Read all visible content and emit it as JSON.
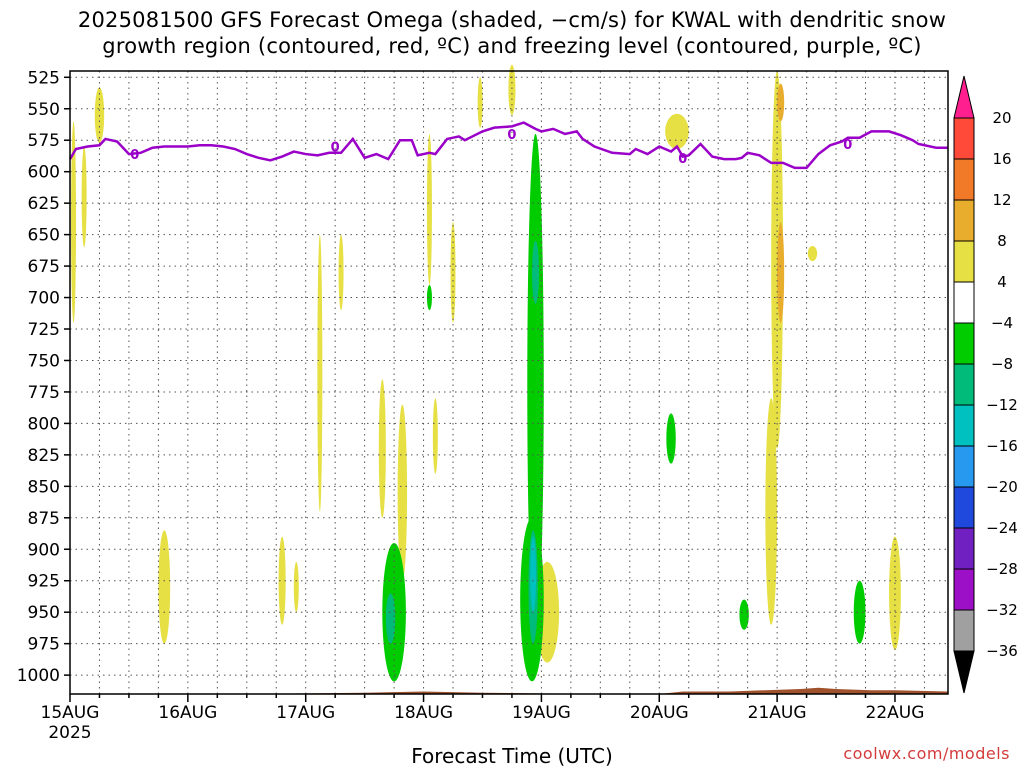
{
  "title_line1": "2025081500 GFS Forecast Omega (shaded, −cm/s) for KWAL with dendritic snow",
  "title_line2": "growth region (contoured, red, ºC) and freezing level (contoured, purple, ºC)",
  "xlabel": "Forecast Time (UTC)",
  "credit": "coolwx.com/models",
  "colors": {
    "freezing_line": "#9a00c8",
    "terrain": "#a0522d"
  },
  "chart_data": {
    "type": "heatmap",
    "y_ticks": [
      525,
      550,
      575,
      600,
      625,
      650,
      675,
      700,
      725,
      750,
      775,
      800,
      825,
      850,
      875,
      900,
      925,
      950,
      975,
      1000
    ],
    "ylim": [
      520,
      1015
    ],
    "x_ticks": [
      {
        "day": 0,
        "label": "15AUG",
        "sub": "2025"
      },
      {
        "day": 1,
        "label": "16AUG",
        "sub": ""
      },
      {
        "day": 2,
        "label": "17AUG",
        "sub": ""
      },
      {
        "day": 3,
        "label": "18AUG",
        "sub": ""
      },
      {
        "day": 4,
        "label": "19AUG",
        "sub": ""
      },
      {
        "day": 5,
        "label": "20AUG",
        "sub": ""
      },
      {
        "day": 6,
        "label": "21AUG",
        "sub": ""
      },
      {
        "day": 7,
        "label": "22AUG",
        "sub": ""
      }
    ],
    "xlim": [
      0,
      7.45
    ],
    "colorbar": {
      "labels": [
        "20",
        "16",
        "12",
        "8",
        "4",
        "−4",
        "−8",
        "−12",
        "−16",
        "−20",
        "−24",
        "−28",
        "−32",
        "−36"
      ],
      "bands": [
        "#ff1f8f",
        "#ff4a3a",
        "#f07a28",
        "#e9ad2e",
        "#e6e044",
        "#ffffff",
        "#00cc00",
        "#00bb7a",
        "#00c0c0",
        "#2799ee",
        "#1f48dd",
        "#7020c0",
        "#9c10c8",
        "#a0a0a0",
        "#000000"
      ]
    },
    "freezing_level": {
      "label": "0",
      "points": [
        [
          0,
          590
        ],
        [
          0.05,
          582
        ],
        [
          0.15,
          580
        ],
        [
          0.25,
          579
        ],
        [
          0.3,
          574
        ],
        [
          0.4,
          576
        ],
        [
          0.5,
          586
        ],
        [
          0.6,
          585
        ],
        [
          0.7,
          581
        ],
        [
          0.8,
          580
        ],
        [
          0.9,
          580
        ],
        [
          1.0,
          580
        ],
        [
          1.1,
          579
        ],
        [
          1.2,
          579
        ],
        [
          1.3,
          580
        ],
        [
          1.4,
          582
        ],
        [
          1.5,
          586
        ],
        [
          1.6,
          589
        ],
        [
          1.7,
          591
        ],
        [
          1.8,
          588
        ],
        [
          1.9,
          584
        ],
        [
          2.0,
          586
        ],
        [
          2.1,
          587
        ],
        [
          2.2,
          585
        ],
        [
          2.3,
          585
        ],
        [
          2.4,
          574
        ],
        [
          2.5,
          589
        ],
        [
          2.6,
          586
        ],
        [
          2.7,
          590
        ],
        [
          2.8,
          575
        ],
        [
          2.9,
          575
        ],
        [
          2.95,
          587
        ],
        [
          3.05,
          585
        ],
        [
          3.1,
          586
        ],
        [
          3.2,
          574
        ],
        [
          3.3,
          572
        ],
        [
          3.35,
          575
        ],
        [
          3.5,
          568
        ],
        [
          3.6,
          565
        ],
        [
          3.75,
          564
        ],
        [
          3.85,
          561
        ],
        [
          3.95,
          566
        ],
        [
          4.0,
          568
        ],
        [
          4.1,
          566
        ],
        [
          4.2,
          570
        ],
        [
          4.3,
          568
        ],
        [
          4.35,
          574
        ],
        [
          4.45,
          580
        ],
        [
          4.6,
          585
        ],
        [
          4.75,
          586
        ],
        [
          4.8,
          582
        ],
        [
          4.9,
          586
        ],
        [
          5.0,
          580
        ],
        [
          5.1,
          584
        ],
        [
          5.15,
          580
        ],
        [
          5.2,
          588
        ],
        [
          5.25,
          587
        ],
        [
          5.35,
          578
        ],
        [
          5.45,
          588
        ],
        [
          5.55,
          590
        ],
        [
          5.65,
          590
        ],
        [
          5.7,
          589
        ],
        [
          5.75,
          585
        ],
        [
          5.85,
          587
        ],
        [
          5.95,
          593
        ],
        [
          6.05,
          593
        ],
        [
          6.15,
          597
        ],
        [
          6.25,
          597
        ],
        [
          6.35,
          586
        ],
        [
          6.45,
          579
        ],
        [
          6.55,
          576
        ],
        [
          6.6,
          573
        ],
        [
          6.7,
          573
        ],
        [
          6.8,
          568
        ],
        [
          6.9,
          568
        ],
        [
          6.95,
          568
        ],
        [
          7.05,
          571
        ],
        [
          7.15,
          575
        ],
        [
          7.2,
          578
        ],
        [
          7.35,
          581
        ],
        [
          7.45,
          581
        ]
      ],
      "label_positions": [
        [
          0.55,
          586
        ],
        [
          2.25,
          580
        ],
        [
          3.75,
          570
        ],
        [
          5.2,
          589
        ],
        [
          6.6,
          578
        ]
      ]
    },
    "terrain_top": [
      [
        0,
        1015
      ],
      [
        0.5,
        1015
      ],
      [
        0.9,
        1015
      ],
      [
        1.5,
        1015
      ],
      [
        2.5,
        1014
      ],
      [
        3.0,
        1013
      ],
      [
        3.5,
        1014
      ],
      [
        4.5,
        1015
      ],
      [
        5.0,
        1015
      ],
      [
        5.2,
        1013
      ],
      [
        5.6,
        1013
      ],
      [
        5.9,
        1012
      ],
      [
        6.2,
        1011
      ],
      [
        6.35,
        1010
      ],
      [
        6.5,
        1011
      ],
      [
        6.8,
        1012
      ],
      [
        7.0,
        1012
      ],
      [
        7.45,
        1013
      ]
    ],
    "omega_regions": [
      {
        "cat": "4",
        "cx": 0.25,
        "cy": 555,
        "rx": 0.04,
        "ry": 22
      },
      {
        "cat": "4",
        "cx": 0.03,
        "cy": 640,
        "rx": 0.02,
        "ry": 80
      },
      {
        "cat": "4",
        "cx": 0.12,
        "cy": 620,
        "rx": 0.01,
        "ry": 40
      },
      {
        "cat": "4",
        "cx": 0.8,
        "cy": 930,
        "rx": 0.05,
        "ry": 45
      },
      {
        "cat": "4",
        "cx": 1.8,
        "cy": 925,
        "rx": 0.03,
        "ry": 35
      },
      {
        "cat": "4",
        "cx": 1.92,
        "cy": 930,
        "rx": 0.02,
        "ry": 20
      },
      {
        "cat": "4",
        "cx": 2.12,
        "cy": 760,
        "rx": 0.02,
        "ry": 110
      },
      {
        "cat": "4",
        "cx": 2.3,
        "cy": 680,
        "rx": 0.015,
        "ry": 30
      },
      {
        "cat": "4",
        "cx": 2.65,
        "cy": 820,
        "rx": 0.03,
        "ry": 55
      },
      {
        "cat": "4",
        "cx": 2.82,
        "cy": 855,
        "rx": 0.04,
        "ry": 70
      },
      {
        "cat": "4",
        "cx": 3.05,
        "cy": 630,
        "rx": 0.02,
        "ry": 60
      },
      {
        "cat": "4",
        "cx": 3.1,
        "cy": 810,
        "rx": 0.015,
        "ry": 30
      },
      {
        "cat": "4",
        "cx": 3.25,
        "cy": 680,
        "rx": 0.015,
        "ry": 40
      },
      {
        "cat": "4",
        "cx": 3.48,
        "cy": 545,
        "rx": 0.01,
        "ry": 20
      },
      {
        "cat": "4",
        "cx": 3.75,
        "cy": 535,
        "rx": 0.03,
        "ry": 20
      },
      {
        "cat": "4",
        "cx": 4.05,
        "cy": 950,
        "rx": 0.1,
        "ry": 40
      },
      {
        "cat": "4",
        "cx": 5.15,
        "cy": 568,
        "rx": 0.1,
        "ry": 14
      },
      {
        "cat": "4",
        "cx": 6.0,
        "cy": 670,
        "rx": 0.05,
        "ry": 150
      },
      {
        "cat": "4",
        "cx": 5.95,
        "cy": 870,
        "rx": 0.05,
        "ry": 90
      },
      {
        "cat": "4",
        "cx": 6.3,
        "cy": 665,
        "rx": 0.04,
        "ry": 6
      },
      {
        "cat": "4",
        "cx": 7.0,
        "cy": 935,
        "rx": 0.05,
        "ry": 45
      },
      {
        "cat": "8",
        "cx": 6.03,
        "cy": 545,
        "rx": 0.03,
        "ry": 15
      },
      {
        "cat": "8",
        "cx": 6.03,
        "cy": 680,
        "rx": 0.03,
        "ry": 40
      },
      {
        "cat": "-4",
        "cx": 2.75,
        "cy": 950,
        "rx": 0.1,
        "ry": 55
      },
      {
        "cat": "-4",
        "cx": 3.95,
        "cy": 770,
        "rx": 0.07,
        "ry": 200
      },
      {
        "cat": "-4",
        "cx": 3.92,
        "cy": 940,
        "rx": 0.1,
        "ry": 65
      },
      {
        "cat": "-4",
        "cx": 3.05,
        "cy": 700,
        "rx": 0.01,
        "ry": 10
      },
      {
        "cat": "-4",
        "cx": 5.1,
        "cy": 812,
        "rx": 0.04,
        "ry": 20
      },
      {
        "cat": "-4",
        "cx": 5.72,
        "cy": 952,
        "rx": 0.04,
        "ry": 12
      },
      {
        "cat": "-4",
        "cx": 6.7,
        "cy": 950,
        "rx": 0.05,
        "ry": 25
      },
      {
        "cat": "-8",
        "cx": 3.95,
        "cy": 680,
        "rx": 0.03,
        "ry": 25
      },
      {
        "cat": "-8",
        "cx": 2.72,
        "cy": 955,
        "rx": 0.04,
        "ry": 20
      },
      {
        "cat": "-8",
        "cx": 3.93,
        "cy": 930,
        "rx": 0.04,
        "ry": 45
      },
      {
        "cat": "-12",
        "cx": 3.93,
        "cy": 920,
        "rx": 0.025,
        "ry": 30
      }
    ]
  }
}
